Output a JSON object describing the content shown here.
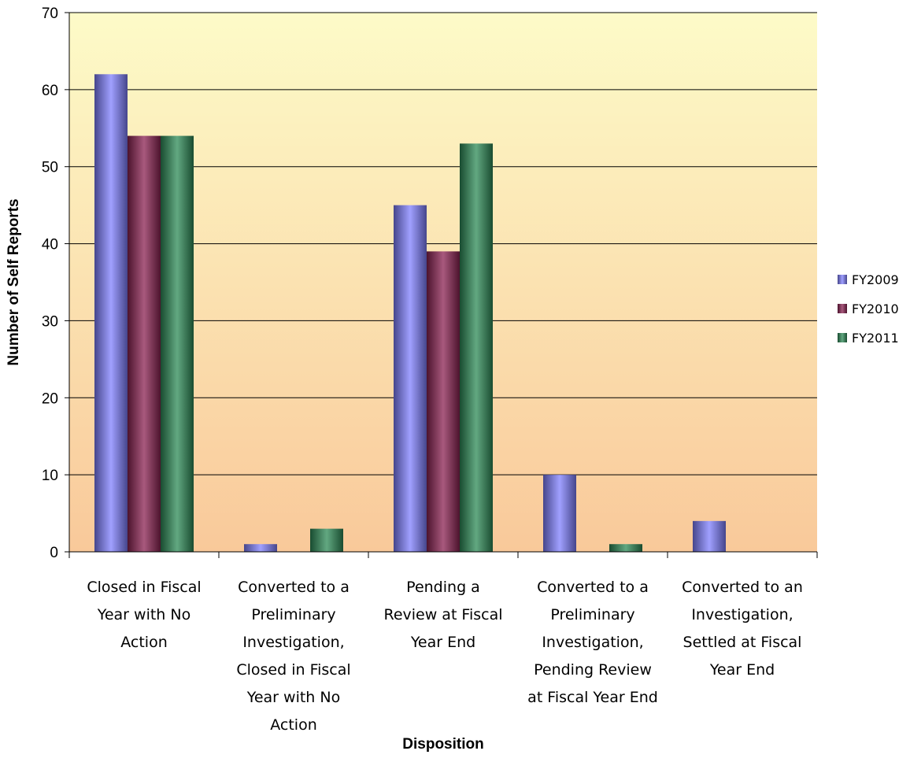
{
  "chart_data": {
    "type": "bar",
    "categories": [
      [
        "Closed in Fiscal",
        "Year with No",
        "Action"
      ],
      [
        "Converted to a",
        "Preliminary",
        "Investigation,",
        "Closed in Fiscal",
        "Year with No",
        "Action"
      ],
      [
        "Pending a",
        "Review at Fiscal",
        "Year End"
      ],
      [
        "Converted to a",
        "Preliminary",
        "Investigation,",
        "Pending Review",
        "at Fiscal Year End"
      ],
      [
        "Converted to an",
        "Investigation,",
        "Settled at Fiscal",
        "Year End"
      ]
    ],
    "series": [
      {
        "name": "FY2009",
        "values": [
          62,
          1,
          45,
          10,
          4
        ],
        "color": "#8080ff"
      },
      {
        "name": "FY2010",
        "values": [
          54,
          0,
          39,
          0,
          0
        ],
        "color": "#8b2252"
      },
      {
        "name": "FY2011",
        "values": [
          54,
          3,
          53,
          1,
          0
        ],
        "color": "#2e8b57"
      }
    ],
    "xlabel": "Disposition",
    "ylabel": "Number of Self Reports",
    "ylim": [
      0,
      70
    ],
    "yticks": [
      0,
      10,
      20,
      30,
      40,
      50,
      60,
      70
    ],
    "grid": true,
    "legend_position": "right"
  }
}
